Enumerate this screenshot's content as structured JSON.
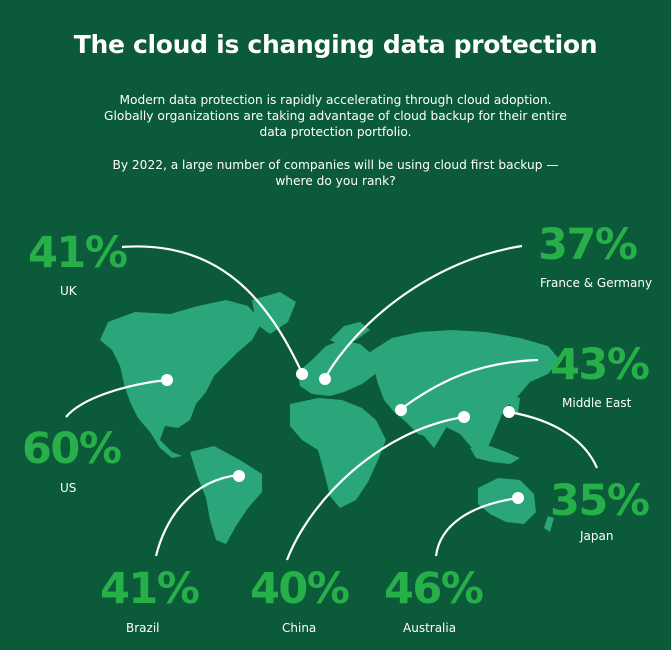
{
  "title": "The cloud is changing data protection",
  "intro": "Modern data protection is rapidly accelerating through cloud adoption. Globally organizations are taking advantage of cloud backup for their entire data protection portfolio.",
  "question": "By 2022, a large number of companies will be using cloud first backup — where do you rank?",
  "colors": {
    "background": "#0b5a3a",
    "continents": "#2aa67a",
    "stat_green": "#27b04a",
    "line": "#ffffff"
  },
  "regions": {
    "uk": {
      "value": "41%",
      "label": "UK"
    },
    "france_germany": {
      "value": "37%",
      "label": "France & Germany"
    },
    "middle_east": {
      "value": "43%",
      "label": "Middle East"
    },
    "us": {
      "value": "60%",
      "label": "US"
    },
    "japan": {
      "value": "35%",
      "label": "Japan"
    },
    "brazil": {
      "value": "41%",
      "label": "Brazil"
    },
    "china": {
      "value": "40%",
      "label": "China"
    },
    "australia": {
      "value": "46%",
      "label": "Australia"
    }
  }
}
